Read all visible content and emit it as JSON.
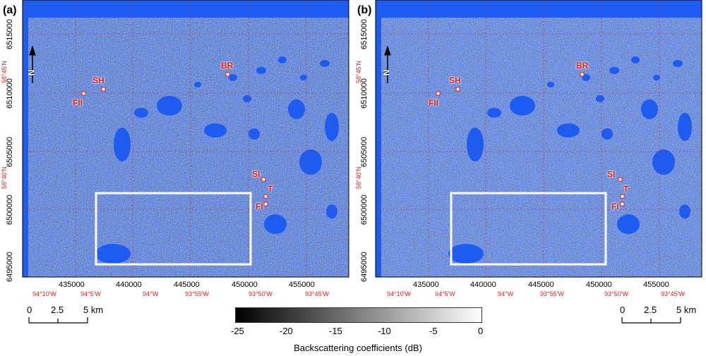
{
  "panels": [
    {
      "label": "(a)",
      "x_ticks": [
        "435000",
        "440000",
        "445000",
        "450000",
        "455000"
      ],
      "y_ticks": [
        "6515000",
        "6510000",
        "6505000",
        "6500000",
        "6495000"
      ],
      "lon_labels": [
        "94°10'W",
        "94°5'W",
        "94°W",
        "93°55'W",
        "93°50'W",
        "93°45'W"
      ],
      "lat_labels": [
        "58°45'N",
        "58°40'N"
      ],
      "sites": [
        "BR",
        "SH",
        "FII",
        "SI",
        "T",
        "FI"
      ],
      "north_label": "N"
    },
    {
      "label": "(b)",
      "x_ticks": [
        "435000",
        "440000",
        "445000",
        "450000",
        "455000"
      ],
      "y_ticks": [
        "6515000",
        "6510000",
        "6505000",
        "6500000",
        "6495000"
      ],
      "lon_labels": [
        "94°10'W",
        "94°5'W",
        "94°W",
        "93°55'W",
        "93°50'W",
        "93°45'W"
      ],
      "lat_labels": [
        "58°45'N",
        "58°40'N"
      ],
      "sites": [
        "BR",
        "SH",
        "FII",
        "SI",
        "T",
        "FI"
      ],
      "north_label": "N"
    }
  ],
  "scalebar": {
    "labels": [
      "0",
      "2.5",
      "5 km"
    ]
  },
  "colorbar": {
    "ticks": [
      "-25",
      "-20",
      "-15",
      "-10",
      "-5",
      "0"
    ],
    "title": "Backscattering coefficients (dB)",
    "colors": {
      "low": "#000000",
      "high": "#ffffff"
    }
  },
  "colors": {
    "water": "#1e5bf0",
    "box": "#ffffff",
    "site": "#e01818",
    "graticule": "#ff3333"
  }
}
